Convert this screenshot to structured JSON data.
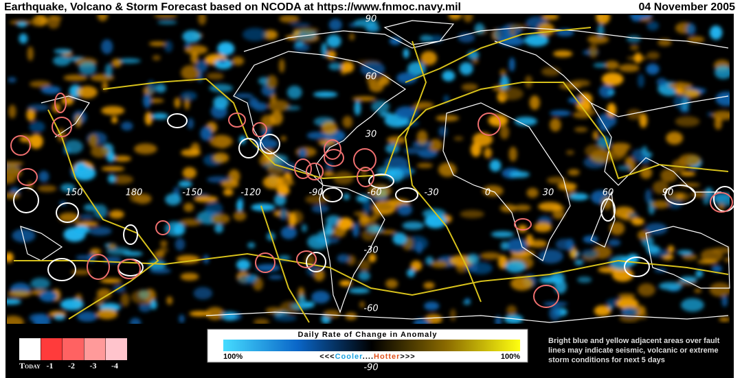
{
  "header": {
    "title": "Earthquake, Volcano & Storm Forecast based on NCODA at https://www.fnmoc.navy.mil",
    "date": "04 November 2005"
  },
  "map": {
    "lat_labels": [
      "90",
      "60",
      "30",
      "-30",
      "-60",
      "-90"
    ],
    "lon_labels": [
      "150",
      "180",
      "-150",
      "-120",
      "-90",
      "-60",
      "-30",
      "0",
      "30",
      "60",
      "90"
    ]
  },
  "day_legend": {
    "items": [
      {
        "label": "Today",
        "color": "#ffffff"
      },
      {
        "label": "-1",
        "color": "#ff3b3b"
      },
      {
        "label": "-2",
        "color": "#ff6262"
      },
      {
        "label": "-3",
        "color": "#ff9a9a"
      },
      {
        "label": "-4",
        "color": "#ffc4cc"
      }
    ]
  },
  "color_legend": {
    "title": "Daily Rate of Change in Anomaly",
    "left": "100%",
    "arrows_left": "<<<",
    "cooler": "Cooler",
    "dots": "....",
    "hotter": "Hotter",
    "arrows_right": ">>>",
    "right": "100%"
  },
  "note": "Bright blue and yellow adjacent areas over fault lines may indicate seismic, volcanic or extreme storm conditions  for next 5 days"
}
